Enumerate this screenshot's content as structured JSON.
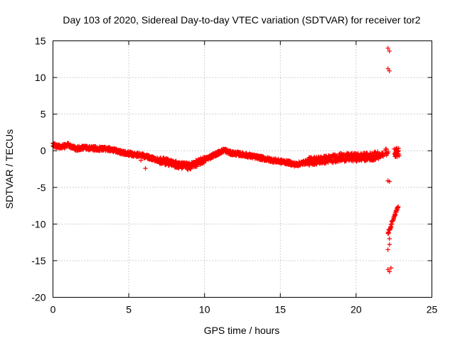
{
  "chart_data": {
    "type": "scatter",
    "title": "Day 103 of 2020, Sidereal Day-to-day VTEC variation (SDTVAR) for receiver tor2",
    "xlabel": "GPS time / hours",
    "ylabel": "SDTVAR / TECUs",
    "xlim": [
      0,
      25
    ],
    "ylim": [
      -20,
      15
    ],
    "xticks": [
      0,
      5,
      10,
      15,
      20,
      25
    ],
    "yticks": [
      -20,
      -15,
      -10,
      -5,
      0,
      5,
      10,
      15
    ],
    "xtick_labels": [
      "0",
      "5",
      "10",
      "15",
      "20",
      "25"
    ],
    "ytick_labels": [
      "-20",
      "-15",
      "-10",
      "-5",
      "0",
      "5",
      "10",
      "15"
    ],
    "grid": true,
    "marker": "+",
    "color": "#ff0000",
    "series": [
      {
        "name": "SDTVAR",
        "trend": [
          [
            0.0,
            0.8
          ],
          [
            0.5,
            0.5
          ],
          [
            1.0,
            0.8
          ],
          [
            1.5,
            0.3
          ],
          [
            2.0,
            0.4
          ],
          [
            3.0,
            0.3
          ],
          [
            3.8,
            0.2
          ],
          [
            4.5,
            -0.2
          ],
          [
            5.0,
            -0.4
          ],
          [
            6.0,
            -0.7
          ],
          [
            7.0,
            -1.3
          ],
          [
            7.5,
            -1.5
          ],
          [
            8.0,
            -1.8
          ],
          [
            8.5,
            -2.0
          ],
          [
            9.0,
            -2.1
          ],
          [
            9.5,
            -1.7
          ],
          [
            10.0,
            -1.2
          ],
          [
            10.5,
            -0.7
          ],
          [
            11.0,
            -0.2
          ],
          [
            11.3,
            0.1
          ],
          [
            11.7,
            -0.3
          ],
          [
            12.5,
            -0.5
          ],
          [
            13.5,
            -0.9
          ],
          [
            14.5,
            -1.3
          ],
          [
            15.5,
            -1.6
          ],
          [
            16.0,
            -1.9
          ],
          [
            17.0,
            -1.4
          ],
          [
            18.0,
            -1.2
          ],
          [
            19.0,
            -0.9
          ],
          [
            20.0,
            -0.9
          ],
          [
            21.0,
            -0.8
          ],
          [
            21.8,
            -0.5
          ]
        ],
        "extra_points": [
          [
            6.1,
            -2.4
          ],
          [
            5.8,
            -1.3
          ],
          [
            6.5,
            -1.0
          ],
          [
            8.9,
            -2.6
          ],
          [
            22.1,
            14.0
          ],
          [
            22.2,
            13.6
          ],
          [
            22.1,
            11.2
          ],
          [
            22.2,
            10.9
          ],
          [
            22.1,
            -4.1
          ],
          [
            22.2,
            -4.2
          ],
          [
            22.1,
            -16.2
          ],
          [
            22.2,
            -16.5
          ],
          [
            22.3,
            -16.0
          ],
          [
            22.1,
            -13.5
          ],
          [
            22.2,
            -12.8
          ],
          [
            22.2,
            -12.0
          ],
          [
            22.6,
            0.2
          ],
          [
            22.7,
            -0.3
          ],
          [
            22.8,
            0.0
          ],
          [
            22.6,
            -0.8
          ]
        ],
        "tail": [
          [
            22.1,
            -11.3
          ],
          [
            22.2,
            -10.8
          ],
          [
            22.3,
            -10.2
          ],
          [
            22.4,
            -9.6
          ],
          [
            22.5,
            -9.0
          ],
          [
            22.6,
            -8.5
          ],
          [
            22.7,
            -8.0
          ],
          [
            22.8,
            -7.6
          ]
        ]
      }
    ]
  }
}
